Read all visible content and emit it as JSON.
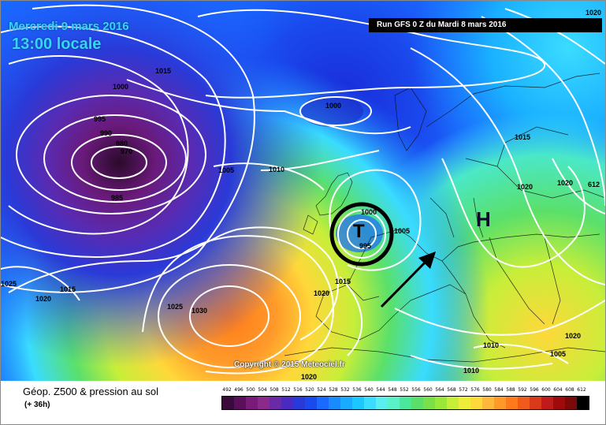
{
  "header": {
    "date": "Mercredi 9 mars 2016",
    "time": "13:00 locale",
    "run": "Run GFS 0 Z du Mardi 8 mars 2016"
  },
  "map": {
    "copyright": "Copyright © 2015 Meteociel.fr",
    "high_label": "H",
    "low_label": "T",
    "isobar_labels": [
      "1020",
      "1015",
      "1000",
      "995",
      "990",
      "980",
      "970",
      "985",
      "1005",
      "1010",
      "1000",
      "1015",
      "1020",
      "1020",
      "612",
      "1000",
      "1005",
      "995",
      "1015",
      "1020",
      "1025",
      "1030",
      "1020",
      "1015",
      "1020",
      "1025",
      "1010",
      "1010",
      "1005",
      "1020"
    ]
  },
  "legend": {
    "title": "Géop. Z500 & pression au sol",
    "subtitle": "(+ 36h)",
    "scale_values": [
      "492",
      "496",
      "500",
      "504",
      "508",
      "512",
      "516",
      "520",
      "524",
      "528",
      "532",
      "536",
      "540",
      "544",
      "548",
      "552",
      "556",
      "560",
      "564",
      "568",
      "572",
      "576",
      "580",
      "584",
      "588",
      "592",
      "596",
      "600",
      "604",
      "608",
      "612"
    ],
    "scale_colors": [
      "#3a0a3a",
      "#5a0f5a",
      "#7a1a7a",
      "#8c2a8c",
      "#6a2aa8",
      "#4a2ac0",
      "#2a3ad8",
      "#1a4aee",
      "#1a6aff",
      "#1a8aff",
      "#1aaaff",
      "#1ac8ff",
      "#3adcff",
      "#5aeeee",
      "#5af0c8",
      "#4ae89a",
      "#5ae06a",
      "#7ae04a",
      "#9ae83a",
      "#c8ee3a",
      "#eeee3a",
      "#ffd83a",
      "#ffb83a",
      "#ff9a2a",
      "#ff7a1a",
      "#f05a1a",
      "#d83a1a",
      "#c01a1a",
      "#a00a0a",
      "#7a0a0a",
      "#000000"
    ]
  }
}
